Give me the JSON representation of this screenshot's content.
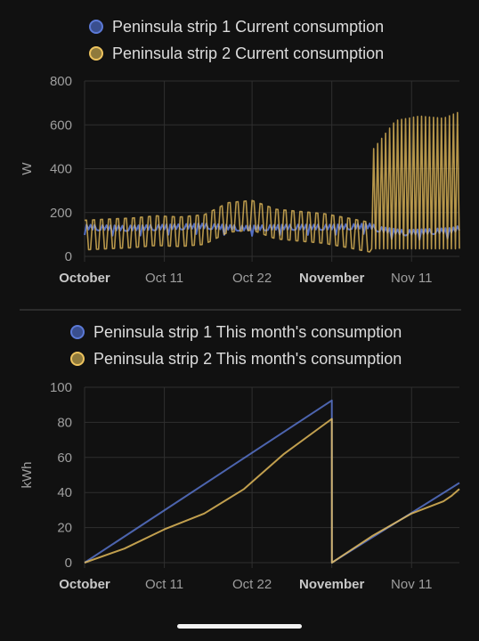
{
  "colors": {
    "background": "#111111",
    "grid": "#2f2f2f",
    "tick_text": "#9e9e9e",
    "strip1": "#5b79d6",
    "strip2": "#edc35e"
  },
  "chart_data": [
    {
      "type": "line",
      "ylabel": "W",
      "ylim": [
        0,
        800
      ],
      "yticks": [
        0,
        200,
        400,
        600,
        800
      ],
      "xlim": [
        "Oct 1",
        "Nov 16"
      ],
      "xticks": [
        {
          "label": "October",
          "day": 0,
          "bold": true
        },
        {
          "label": "Oct 11",
          "day": 10,
          "bold": false
        },
        {
          "label": "Oct 22",
          "day": 21,
          "bold": false
        },
        {
          "label": "November",
          "day": 31,
          "bold": true
        },
        {
          "label": "Nov 11",
          "day": 41,
          "bold": false
        }
      ],
      "grid": true,
      "legend_position": "top",
      "series": [
        {
          "name": "Peninsula strip 1 Current consumption",
          "color": "#5b79d6",
          "x": [
            0,
            5,
            10,
            15,
            20,
            25,
            31,
            35.8,
            37,
            40,
            43,
            46,
            47
          ],
          "y": [
            135,
            130,
            135,
            140,
            130,
            135,
            135,
            140,
            125,
            110,
            115,
            120,
            130
          ]
        },
        {
          "name": "Peninsula strip 2 Current consumption",
          "color": "#edc35e",
          "x": [
            0,
            3,
            6,
            9,
            12,
            15,
            18,
            21,
            24,
            27,
            30,
            33,
            35.8,
            36,
            39,
            42,
            45,
            47
          ],
          "y": [
            110,
            115,
            120,
            130,
            125,
            135,
            190,
            200,
            160,
            150,
            140,
            120,
            100,
            440,
            580,
            600,
            590,
            620
          ]
        }
      ]
    },
    {
      "type": "line",
      "ylabel": "kWh",
      "ylim": [
        0,
        100
      ],
      "yticks": [
        0,
        20,
        40,
        60,
        80,
        100
      ],
      "xlim": [
        "Oct 1",
        "Nov 16"
      ],
      "xticks": [
        {
          "label": "October",
          "day": 0,
          "bold": true
        },
        {
          "label": "Oct 11",
          "day": 10,
          "bold": false
        },
        {
          "label": "Oct 22",
          "day": 21,
          "bold": false
        },
        {
          "label": "November",
          "day": 31,
          "bold": true
        },
        {
          "label": "Nov 11",
          "day": 41,
          "bold": false
        }
      ],
      "grid": true,
      "legend_position": "top",
      "series": [
        {
          "name": "Peninsula strip 1 This month's consumption",
          "color": "#5b79d6",
          "x": [
            0,
            31,
            31.01,
            47
          ],
          "y": [
            0,
            92.5,
            0,
            45.5
          ]
        },
        {
          "name": "Peninsula strip 2 This month's consumption",
          "color": "#edc35e",
          "x": [
            0,
            5,
            10,
            15,
            20,
            25,
            31,
            31.01,
            36,
            41,
            45,
            46,
            47
          ],
          "y": [
            0,
            8,
            19,
            28,
            42,
            62,
            82,
            0,
            15,
            28,
            35,
            38,
            42
          ]
        }
      ]
    }
  ]
}
